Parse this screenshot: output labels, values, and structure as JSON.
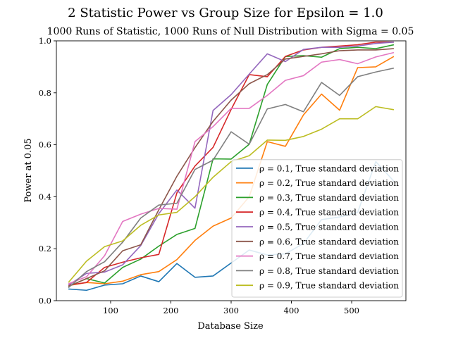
{
  "chart_data": {
    "type": "line",
    "title": "2 Statistic Power vs Group Size for Epsilon = 1.0",
    "subtitle": "1000 Runs of Statistic, 1000 Runs of Null Distribution with Sigma = 0.05",
    "xlabel": "Database Size",
    "ylabel": "Power at 0.05",
    "xlim": [
      10,
      590
    ],
    "ylim": [
      0,
      1.0
    ],
    "xticks": [
      100,
      200,
      300,
      400,
      500
    ],
    "yticks": [
      0.0,
      0.2,
      0.4,
      0.6,
      0.8,
      1.0
    ],
    "xtick_labels": [
      "100",
      "200",
      "300",
      "400",
      "500"
    ],
    "ytick_labels": [
      "0.0",
      "0.2",
      "0.4",
      "0.6",
      "0.8",
      "1.0"
    ],
    "grid": false,
    "legend_position": "lower-right",
    "x": [
      30,
      60,
      90,
      120,
      150,
      180,
      210,
      240,
      270,
      300,
      330,
      360,
      390,
      420,
      450,
      480,
      510,
      540,
      570
    ],
    "series": [
      {
        "name": "ρ = 0.1, True standard deviation",
        "color": "#1f77b4",
        "values": [
          0.045,
          0.04,
          0.06,
          0.065,
          0.095,
          0.073,
          0.143,
          0.09,
          0.095,
          0.145,
          0.195,
          0.176,
          0.18,
          0.22,
          0.312,
          0.322,
          0.34,
          0.535,
          0.46
        ]
      },
      {
        "name": "ρ = 0.2, True standard deviation",
        "color": "#ff7f0e",
        "values": [
          0.058,
          0.07,
          0.065,
          0.075,
          0.1,
          0.112,
          0.158,
          0.232,
          0.287,
          0.318,
          0.4,
          0.612,
          0.594,
          0.715,
          0.795,
          0.733,
          0.897,
          0.9,
          0.94
        ]
      },
      {
        "name": "ρ = 0.3, True standard deviation",
        "color": "#2ca02c",
        "values": [
          0.055,
          0.085,
          0.068,
          0.128,
          0.16,
          0.21,
          0.255,
          0.278,
          0.546,
          0.545,
          0.602,
          0.832,
          0.94,
          0.943,
          0.937,
          0.97,
          0.975,
          0.97,
          0.985
        ]
      },
      {
        "name": "ρ = 0.4, True standard deviation",
        "color": "#d62728",
        "values": [
          0.06,
          0.07,
          0.128,
          0.148,
          0.165,
          0.178,
          0.415,
          0.518,
          0.59,
          0.736,
          0.87,
          0.862,
          0.94,
          0.965,
          0.975,
          0.98,
          0.985,
          0.995,
          0.995
        ]
      },
      {
        "name": "ρ = 0.5, True standard deviation",
        "color": "#9467bd",
        "values": [
          0.06,
          0.105,
          0.11,
          0.138,
          0.212,
          0.335,
          0.426,
          0.356,
          0.732,
          0.793,
          0.872,
          0.95,
          0.92,
          0.967,
          0.975,
          0.975,
          0.98,
          0.99,
          0.995
        ]
      },
      {
        "name": "ρ = 0.6, True standard deviation",
        "color": "#8c564b",
        "values": [
          0.055,
          0.085,
          0.115,
          0.192,
          0.215,
          0.35,
          0.479,
          0.589,
          0.69,
          0.772,
          0.835,
          0.87,
          0.93,
          0.94,
          0.95,
          0.962,
          0.965,
          0.965,
          0.97
        ]
      },
      {
        "name": "ρ = 0.7, True standard deviation",
        "color": "#e377c2",
        "values": [
          0.065,
          0.092,
          0.173,
          0.305,
          0.333,
          0.355,
          0.352,
          0.612,
          0.67,
          0.74,
          0.74,
          0.79,
          0.848,
          0.866,
          0.918,
          0.928,
          0.912,
          0.938,
          0.955
        ]
      },
      {
        "name": "ρ = 0.8, True standard deviation",
        "color": "#7f7f7f",
        "values": [
          0.05,
          0.112,
          0.15,
          0.225,
          0.318,
          0.368,
          0.375,
          0.505,
          0.541,
          0.65,
          0.602,
          0.738,
          0.755,
          0.727,
          0.84,
          0.79,
          0.862,
          0.88,
          0.895
        ]
      },
      {
        "name": "ρ = 0.9, True standard deviation",
        "color": "#bcbd22",
        "values": [
          0.07,
          0.152,
          0.208,
          0.23,
          0.29,
          0.33,
          0.34,
          0.4,
          0.475,
          0.535,
          0.558,
          0.618,
          0.617,
          0.632,
          0.66,
          0.7,
          0.7,
          0.747,
          0.735
        ]
      }
    ]
  }
}
